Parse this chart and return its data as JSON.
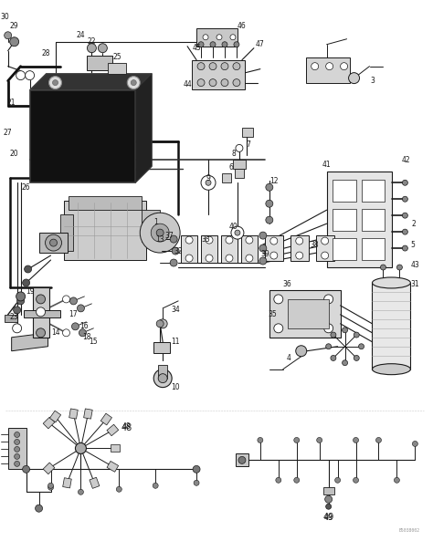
{
  "bg_color": "#ffffff",
  "line_color": "#1a1a1a",
  "fig_width": 4.74,
  "fig_height": 5.93,
  "dpi": 100,
  "watermark": "B5038002"
}
